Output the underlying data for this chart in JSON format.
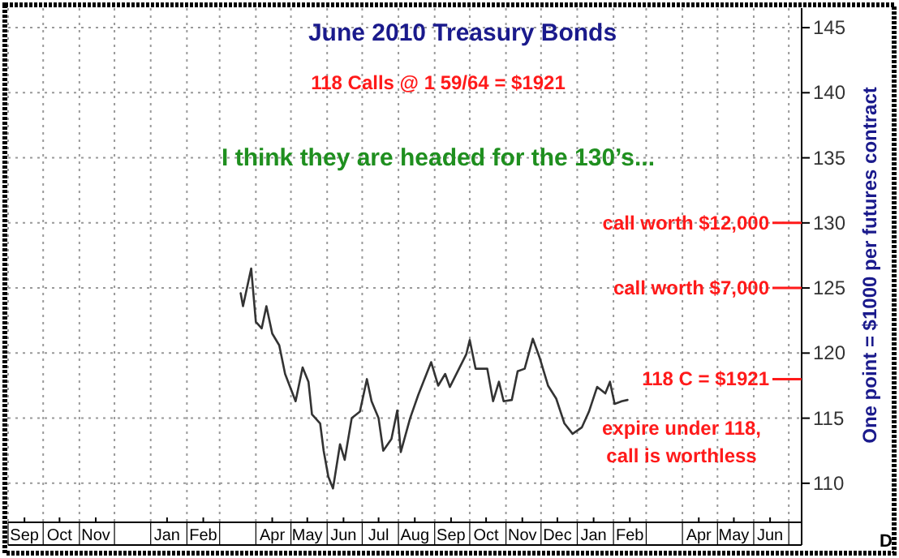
{
  "chart_data": {
    "type": "line",
    "title": "June 2010 Treasury Bonds",
    "subtitle": "118 Calls @ 1 59/64 = $1921",
    "y2label": "One point = $1000 per futures contract",
    "annotations": [
      "I think they are headed for the 130’s...",
      "expire under 118,\ncall is worthless",
      "D"
    ],
    "x": [
      "2009-03-19",
      "2009-03-21",
      "2009-03-28",
      "2009-04-01",
      "2009-04-06",
      "2009-04-10",
      "2009-04-15",
      "2009-04-21",
      "2009-04-26",
      "2009-05-05",
      "2009-05-11",
      "2009-05-16",
      "2009-05-19",
      "2009-05-26",
      "2009-05-29",
      "2009-06-02",
      "2009-06-06",
      "2009-06-12",
      "2009-06-16",
      "2009-06-22",
      "2009-06-29",
      "2009-07-05",
      "2009-07-09",
      "2009-07-15",
      "2009-07-19",
      "2009-07-26",
      "2009-07-31",
      "2009-08-03",
      "2009-08-11",
      "2009-08-18",
      "2009-08-29",
      "2009-09-04",
      "2009-09-10",
      "2009-09-14",
      "2009-09-28",
      "2009-10-01",
      "2009-10-06",
      "2009-10-16",
      "2009-10-21",
      "2009-10-26",
      "2009-10-30",
      "2009-11-06",
      "2009-11-11",
      "2009-11-17",
      "2009-11-24",
      "2009-11-30",
      "2009-12-07",
      "2009-12-14",
      "2009-12-21",
      "2009-12-28",
      "2010-01-05",
      "2010-01-11",
      "2010-01-18",
      "2010-01-25",
      "2010-01-29",
      "2010-02-02",
      "2010-02-08",
      "2010-02-13"
    ],
    "series": [
      {
        "color": "#333333",
        "axis": "y2",
        "values": [
          124.6,
          123.6,
          126.5,
          122.4,
          121.9,
          123.6,
          121.5,
          120.6,
          118.4,
          116.3,
          118.9,
          117.8,
          115.3,
          114.6,
          112.5,
          110.5,
          109.6,
          113,
          111.8,
          115,
          115.5,
          118,
          116.3,
          115,
          112.5,
          113.4,
          115.6,
          112.4,
          115,
          116.8,
          119.3,
          117.5,
          118.4,
          117.4,
          119.9,
          121,
          118.8,
          118.8,
          116.3,
          117.8,
          116.3,
          116.4,
          118.6,
          118.8,
          121.1,
          119.6,
          117.5,
          116.5,
          114.6,
          113.8,
          114.3,
          115.5,
          117.4,
          116.9,
          117.8,
          116.1,
          116.3,
          116.4
        ]
      }
    ],
    "xlim": [
      "2008-09-01",
      "2010-07-12"
    ],
    "xticks": [
      {
        "value": "2008-09-15",
        "label": "Sep"
      },
      {
        "value": "2008-10-15",
        "label": "Oct"
      },
      {
        "value": "2008-11-15",
        "label": "Nov"
      },
      {
        "value": "2009-01-15",
        "label": "Jan"
      },
      {
        "value": "2009-02-15",
        "label": "Feb"
      },
      {
        "value": "2009-04-15",
        "label": "Apr"
      },
      {
        "value": "2009-05-15",
        "label": "May"
      },
      {
        "value": "2009-06-15",
        "label": "Jun"
      },
      {
        "value": "2009-07-15",
        "label": "Jul"
      },
      {
        "value": "2009-08-15",
        "label": "Aug"
      },
      {
        "value": "2009-09-15",
        "label": "Sep"
      },
      {
        "value": "2009-10-15",
        "label": "Oct"
      },
      {
        "value": "2009-11-15",
        "label": "Nov"
      },
      {
        "value": "2009-12-15",
        "label": "Dec"
      },
      {
        "value": "2010-01-15",
        "label": "Jan"
      },
      {
        "value": "2010-02-15",
        "label": "Feb"
      },
      {
        "value": "2010-04-15",
        "label": "Apr"
      },
      {
        "value": "2010-05-15",
        "label": "May"
      },
      {
        "value": "2010-06-15",
        "label": "Jun"
      }
    ],
    "y2lim": [
      107,
      146.5
    ],
    "y2ticks": [
      110,
      115,
      120,
      125,
      130,
      135,
      140,
      145
    ],
    "ref_lines": [
      {
        "axis": "y2",
        "value": 130,
        "label": "call worth $12,000",
        "color": "#ff1a1a"
      },
      {
        "axis": "y2",
        "value": 125,
        "label": "call worth $7,000",
        "color": "#ff1a1a"
      },
      {
        "axis": "y2",
        "value": 118,
        "label": "118 C = $1921",
        "color": "#ff1a1a"
      }
    ],
    "grid": true,
    "line_style": "solid",
    "marker": "none"
  }
}
